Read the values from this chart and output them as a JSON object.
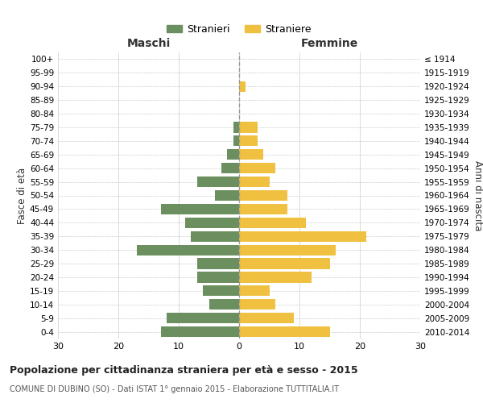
{
  "age_groups": [
    "0-4",
    "5-9",
    "10-14",
    "15-19",
    "20-24",
    "25-29",
    "30-34",
    "35-39",
    "40-44",
    "45-49",
    "50-54",
    "55-59",
    "60-64",
    "65-69",
    "70-74",
    "75-79",
    "80-84",
    "85-89",
    "90-94",
    "95-99",
    "100+"
  ],
  "birth_years": [
    "2010-2014",
    "2005-2009",
    "2000-2004",
    "1995-1999",
    "1990-1994",
    "1985-1989",
    "1980-1984",
    "1975-1979",
    "1970-1974",
    "1965-1969",
    "1960-1964",
    "1955-1959",
    "1950-1954",
    "1945-1949",
    "1940-1944",
    "1935-1939",
    "1930-1934",
    "1925-1929",
    "1920-1924",
    "1915-1919",
    "≤ 1914"
  ],
  "maschi": [
    13,
    12,
    5,
    6,
    7,
    7,
    17,
    8,
    9,
    13,
    4,
    7,
    3,
    2,
    1,
    1,
    0,
    0,
    0,
    0,
    0
  ],
  "femmine": [
    15,
    9,
    6,
    5,
    12,
    15,
    16,
    21,
    11,
    8,
    8,
    5,
    6,
    4,
    3,
    3,
    0,
    0,
    1,
    0,
    0
  ],
  "color_maschi": "#6b8f5e",
  "color_femmine": "#f0c040",
  "title": "Popolazione per cittadinanza straniera per età e sesso - 2015",
  "subtitle": "COMUNE DI DUBINO (SO) - Dati ISTAT 1° gennaio 2015 - Elaborazione TUTTITALIA.IT",
  "label_maschi": "Stranieri",
  "label_femmine": "Straniere",
  "xlabel_left": "Maschi",
  "xlabel_right": "Femmine",
  "ylabel_left": "Fasce di età",
  "ylabel_right": "Anni di nascita",
  "xlim": 30,
  "background_color": "#ffffff",
  "grid_color": "#cccccc"
}
